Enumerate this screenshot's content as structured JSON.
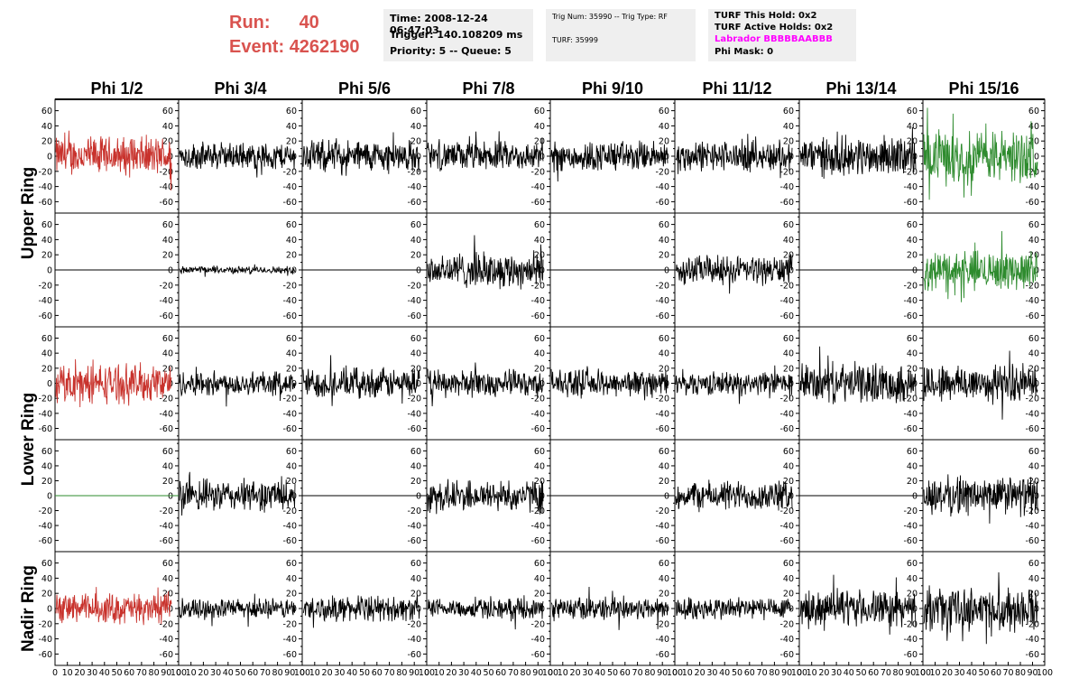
{
  "header": {
    "run_label": "Run:",
    "run_value": "40",
    "event_label": "Event:",
    "event_value": "4262190"
  },
  "info_box_1": {
    "time": "Time: 2008-12-24 06:47:03",
    "trigger": "Trigger: 140.108209 ms",
    "priority": "Priority: 5 -- Queue: 5"
  },
  "info_box_2": {
    "trig": "Trig Num: 35990 -- Trig Type: RF",
    "turf": "TURF: 35999"
  },
  "info_box_3": {
    "hold": "TURF This Hold: 0x2",
    "active": "TURF Active Holds: 0x2",
    "labrador": "Labrador BBBBBAABBB",
    "phimask": "Phi Mask: 0"
  },
  "colors": {
    "red": "#c8322c",
    "green": "#2e8b2e",
    "black": "#000000",
    "header_red": "#d9534f",
    "magenta": "#ff00ff"
  },
  "chart_data": {
    "type": "line",
    "phi_sectors": [
      "Phi 1/2",
      "Phi 3/4",
      "Phi 5/6",
      "Phi 7/8",
      "Phi 9/10",
      "Phi 11/12",
      "Phi 13/14",
      "Phi 15/16"
    ],
    "ring_labels": [
      "Upper Ring",
      "Lower Ring",
      "Nadir Ring"
    ],
    "ylim": [
      -75,
      75
    ],
    "yticks": [
      -60,
      -40,
      -20,
      0,
      20,
      40,
      60
    ],
    "xlim": [
      0,
      100
    ],
    "xticks": [
      0,
      10,
      20,
      30,
      40,
      50,
      60,
      70,
      80,
      90,
      100
    ],
    "panels": [
      [
        {
          "color": "red",
          "amp": 22,
          "flat": false
        },
        {
          "color": "black",
          "amp": 15,
          "flat": false
        },
        {
          "color": "black",
          "amp": 18,
          "flat": false
        },
        {
          "color": "black",
          "amp": 16,
          "flat": false
        },
        {
          "color": "black",
          "amp": 17,
          "flat": false
        },
        {
          "color": "black",
          "amp": 17,
          "flat": false
        },
        {
          "color": "black",
          "amp": 22,
          "flat": false
        },
        {
          "color": "green",
          "amp": 30,
          "flat": false
        }
      ],
      [
        {
          "color": "black",
          "amp": 0,
          "flat": true
        },
        {
          "color": "black",
          "amp": 4,
          "flat": false
        },
        {
          "color": "black",
          "amp": 0,
          "flat": true
        },
        {
          "color": "black",
          "amp": 20,
          "flat": false
        },
        {
          "color": "black",
          "amp": 0,
          "flat": true
        },
        {
          "color": "black",
          "amp": 16,
          "flat": false
        },
        {
          "color": "black",
          "amp": 0,
          "flat": true
        },
        {
          "color": "green",
          "amp": 22,
          "flat": false
        }
      ],
      [
        {
          "color": "red",
          "amp": 22,
          "flat": false
        },
        {
          "color": "black",
          "amp": 14,
          "flat": false
        },
        {
          "color": "black",
          "amp": 17,
          "flat": false
        },
        {
          "color": "black",
          "amp": 15,
          "flat": false
        },
        {
          "color": "black",
          "amp": 15,
          "flat": false
        },
        {
          "color": "black",
          "amp": 13,
          "flat": false
        },
        {
          "color": "black",
          "amp": 22,
          "flat": false
        },
        {
          "color": "black",
          "amp": 22,
          "flat": false
        }
      ],
      [
        {
          "color": "green",
          "amp": 0,
          "flat": true
        },
        {
          "color": "black",
          "amp": 18,
          "flat": false
        },
        {
          "color": "black",
          "amp": 0,
          "flat": true
        },
        {
          "color": "black",
          "amp": 18,
          "flat": false
        },
        {
          "color": "black",
          "amp": 0,
          "flat": true
        },
        {
          "color": "black",
          "amp": 17,
          "flat": false
        },
        {
          "color": "black",
          "amp": 0,
          "flat": true
        },
        {
          "color": "black",
          "amp": 22,
          "flat": false
        }
      ],
      [
        {
          "color": "red",
          "amp": 17,
          "flat": false
        },
        {
          "color": "black",
          "amp": 11,
          "flat": false
        },
        {
          "color": "black",
          "amp": 14,
          "flat": false
        },
        {
          "color": "black",
          "amp": 11,
          "flat": false
        },
        {
          "color": "black",
          "amp": 13,
          "flat": false
        },
        {
          "color": "black",
          "amp": 13,
          "flat": false
        },
        {
          "color": "black",
          "amp": 20,
          "flat": false
        },
        {
          "color": "black",
          "amp": 24,
          "flat": false
        }
      ]
    ]
  }
}
